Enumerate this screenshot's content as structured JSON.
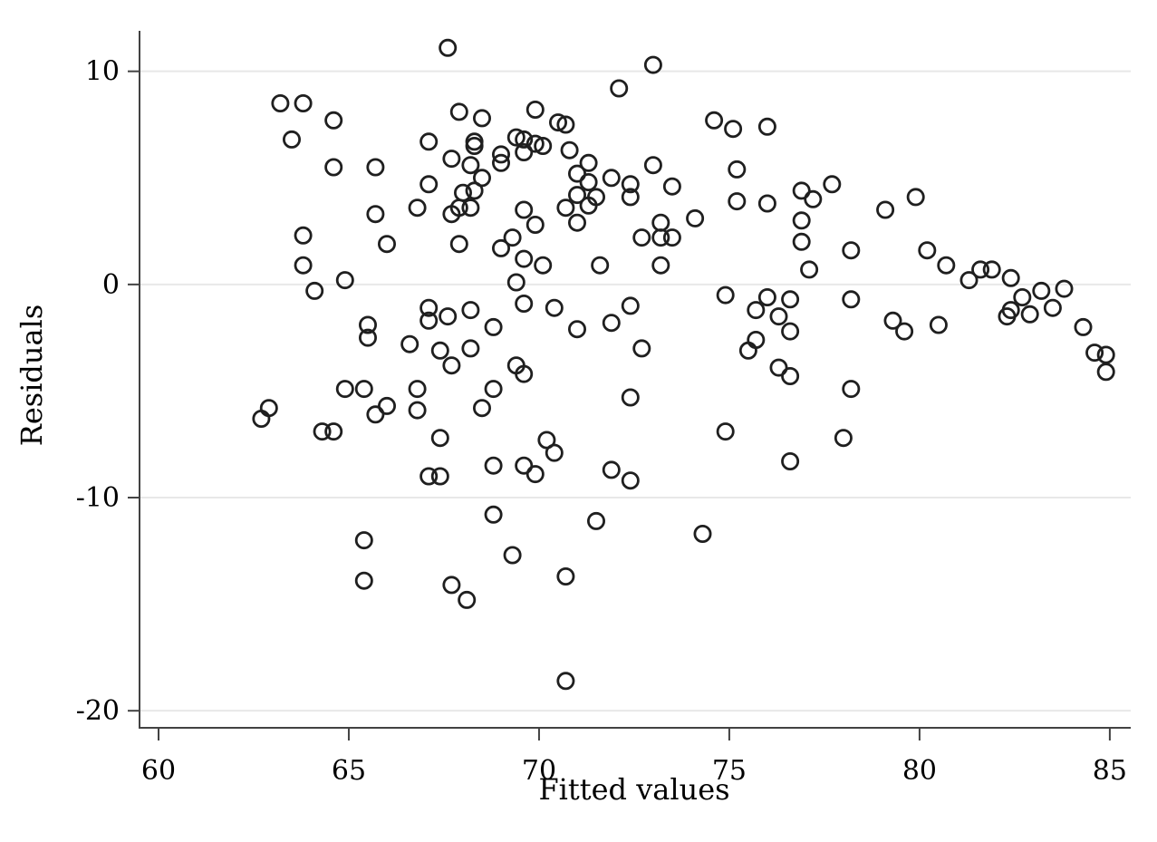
{
  "chart_data": {
    "type": "scatter",
    "title": "",
    "xlabel": "Fitted values",
    "ylabel": "Residuals",
    "x_ticks": [
      60,
      65,
      70,
      75,
      80,
      85
    ],
    "y_ticks": [
      10,
      0,
      -10,
      -20
    ],
    "xlim": [
      59.5,
      85.55
    ],
    "ylim": [
      -20.8,
      11.9
    ],
    "grid": "horizontal-only",
    "legend": "none",
    "marker": "hollow-circle",
    "points": [
      [
        67.6,
        11.1
      ],
      [
        63.2,
        8.5
      ],
      [
        63.8,
        8.5
      ],
      [
        64.6,
        7.7
      ],
      [
        63.5,
        6.8
      ],
      [
        64.6,
        5.5
      ],
      [
        65.7,
        5.5
      ],
      [
        67.1,
        6.7
      ],
      [
        67.9,
        8.1
      ],
      [
        67.7,
        5.9
      ],
      [
        67.1,
        4.7
      ],
      [
        66.8,
        3.6
      ],
      [
        65.7,
        3.3
      ],
      [
        63.8,
        2.3
      ],
      [
        66.0,
        1.9
      ],
      [
        67.9,
        1.9
      ],
      [
        67.7,
        3.3
      ],
      [
        67.9,
        3.6
      ],
      [
        68.3,
        6.7
      ],
      [
        68.3,
        6.5
      ],
      [
        68.2,
        5.6
      ],
      [
        68.5,
        5.0
      ],
      [
        68.0,
        4.3
      ],
      [
        68.3,
        4.4
      ],
      [
        68.2,
        3.6
      ],
      [
        73.0,
        10.3
      ],
      [
        72.1,
        9.2
      ],
      [
        69.9,
        8.2
      ],
      [
        68.5,
        7.8
      ],
      [
        70.5,
        7.6
      ],
      [
        70.7,
        7.5
      ],
      [
        74.6,
        7.7
      ],
      [
        75.1,
        7.3
      ],
      [
        76.0,
        7.4
      ],
      [
        69.4,
        6.9
      ],
      [
        69.6,
        6.8
      ],
      [
        69.9,
        6.6
      ],
      [
        69.6,
        6.2
      ],
      [
        70.1,
        6.5
      ],
      [
        69.0,
        6.1
      ],
      [
        69.0,
        5.7
      ],
      [
        70.8,
        6.3
      ],
      [
        71.3,
        5.7
      ],
      [
        71.0,
        5.2
      ],
      [
        71.3,
        4.8
      ],
      [
        71.9,
        5.0
      ],
      [
        73.0,
        5.6
      ],
      [
        75.2,
        5.4
      ],
      [
        72.4,
        4.7
      ],
      [
        72.4,
        4.1
      ],
      [
        71.0,
        4.2
      ],
      [
        71.5,
        4.1
      ],
      [
        71.3,
        3.7
      ],
      [
        73.5,
        4.6
      ],
      [
        75.2,
        3.9
      ],
      [
        76.0,
        3.8
      ],
      [
        70.7,
        3.6
      ],
      [
        69.6,
        3.5
      ],
      [
        69.9,
        2.8
      ],
      [
        71.0,
        2.9
      ],
      [
        73.2,
        2.9
      ],
      [
        74.1,
        3.1
      ],
      [
        72.7,
        2.2
      ],
      [
        73.2,
        2.2
      ],
      [
        73.5,
        2.2
      ],
      [
        69.3,
        2.2
      ],
      [
        69.0,
        1.7
      ],
      [
        69.6,
        1.2
      ],
      [
        70.1,
        0.9
      ],
      [
        71.6,
        0.9
      ],
      [
        73.2,
        0.9
      ],
      [
        77.7,
        4.7
      ],
      [
        76.9,
        4.4
      ],
      [
        77.2,
        4.0
      ],
      [
        79.1,
        3.5
      ],
      [
        79.9,
        4.1
      ],
      [
        76.9,
        3.0
      ],
      [
        76.9,
        2.0
      ],
      [
        78.2,
        1.6
      ],
      [
        80.2,
        1.6
      ],
      [
        63.8,
        0.9
      ],
      [
        64.1,
        -0.3
      ],
      [
        64.9,
        0.2
      ],
      [
        67.1,
        -1.1
      ],
      [
        67.1,
        -1.7
      ],
      [
        67.6,
        -1.5
      ],
      [
        65.5,
        -1.9
      ],
      [
        65.5,
        -2.5
      ],
      [
        66.6,
        -2.8
      ],
      [
        67.4,
        -3.1
      ],
      [
        67.7,
        -3.8
      ],
      [
        64.9,
        -4.9
      ],
      [
        65.4,
        -4.9
      ],
      [
        66.8,
        -4.9
      ],
      [
        66.0,
        -5.7
      ],
      [
        65.7,
        -6.1
      ],
      [
        62.9,
        -5.8
      ],
      [
        62.7,
        -6.3
      ],
      [
        64.3,
        -6.9
      ],
      [
        64.6,
        -6.9
      ],
      [
        66.8,
        -5.9
      ],
      [
        67.4,
        -7.2
      ],
      [
        67.1,
        -9.0
      ],
      [
        67.4,
        -9.0
      ],
      [
        69.4,
        0.1
      ],
      [
        69.6,
        -0.9
      ],
      [
        70.4,
        -1.1
      ],
      [
        68.2,
        -1.2
      ],
      [
        68.8,
        -2.0
      ],
      [
        71.0,
        -2.1
      ],
      [
        71.9,
        -1.8
      ],
      [
        72.4,
        -1.0
      ],
      [
        74.9,
        -0.5
      ],
      [
        76.0,
        -0.6
      ],
      [
        75.7,
        -1.2
      ],
      [
        76.6,
        -0.7
      ],
      [
        76.3,
        -1.5
      ],
      [
        76.6,
        -2.2
      ],
      [
        75.7,
        -2.6
      ],
      [
        75.5,
        -3.1
      ],
      [
        72.7,
        -3.0
      ],
      [
        68.2,
        -3.0
      ],
      [
        69.4,
        -3.8
      ],
      [
        69.6,
        -4.2
      ],
      [
        76.3,
        -3.9
      ],
      [
        76.6,
        -4.3
      ],
      [
        68.8,
        -4.9
      ],
      [
        68.5,
        -5.8
      ],
      [
        72.4,
        -5.3
      ],
      [
        74.9,
        -6.9
      ],
      [
        70.2,
        -7.3
      ],
      [
        70.4,
        -7.9
      ],
      [
        68.8,
        -8.5
      ],
      [
        69.6,
        -8.5
      ],
      [
        69.9,
        -8.9
      ],
      [
        71.9,
        -8.7
      ],
      [
        72.4,
        -9.2
      ],
      [
        76.6,
        -8.3
      ],
      [
        77.1,
        0.7
      ],
      [
        80.7,
        0.9
      ],
      [
        81.3,
        0.2
      ],
      [
        81.6,
        0.7
      ],
      [
        81.9,
        0.7
      ],
      [
        82.4,
        0.3
      ],
      [
        82.7,
        -0.6
      ],
      [
        83.2,
        -0.3
      ],
      [
        83.8,
        -0.2
      ],
      [
        83.5,
        -1.1
      ],
      [
        82.4,
        -1.2
      ],
      [
        82.3,
        -1.5
      ],
      [
        82.9,
        -1.4
      ],
      [
        78.2,
        -0.7
      ],
      [
        79.3,
        -1.7
      ],
      [
        79.6,
        -2.2
      ],
      [
        80.5,
        -1.9
      ],
      [
        84.3,
        -2.0
      ],
      [
        84.6,
        -3.2
      ],
      [
        84.9,
        -3.3
      ],
      [
        84.9,
        -4.1
      ],
      [
        78.2,
        -4.9
      ],
      [
        78.0,
        -7.2
      ],
      [
        65.4,
        -12.0
      ],
      [
        65.4,
        -13.9
      ],
      [
        67.7,
        -14.1
      ],
      [
        68.8,
        -10.8
      ],
      [
        71.5,
        -11.1
      ],
      [
        74.3,
        -11.7
      ],
      [
        69.3,
        -12.7
      ],
      [
        70.7,
        -13.7
      ],
      [
        68.1,
        -14.8
      ],
      [
        70.7,
        -18.6
      ]
    ]
  },
  "style": {
    "background": "#ffffff",
    "point_stroke": "#1f1f1f",
    "grid_color": "#e8e8e8",
    "axis_color": "#424242",
    "text_color": "#000000"
  }
}
